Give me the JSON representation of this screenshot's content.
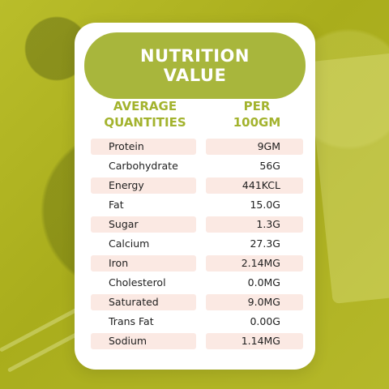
{
  "title": [
    "NUTRITION",
    "VALUE"
  ],
  "columns": {
    "left": [
      "AVERAGE",
      "QUANTITIES"
    ],
    "right": [
      "PER",
      "100GM"
    ]
  },
  "rows": [
    {
      "name": "Protein",
      "value": "9GM"
    },
    {
      "name": "Carbohydrate",
      "value": "56G"
    },
    {
      "name": "Energy",
      "value": "441KCL"
    },
    {
      "name": "Fat",
      "value": "15.0G"
    },
    {
      "name": "Sugar",
      "value": "1.3G"
    },
    {
      "name": "Calcium",
      "value": "27.3G"
    },
    {
      "name": "Iron",
      "value": "2.14MG"
    },
    {
      "name": "Cholesterol",
      "value": "0.0MG"
    },
    {
      "name": "Saturated",
      "value": "9.0MG"
    },
    {
      "name": "Trans Fat",
      "value": "0.00G"
    },
    {
      "name": "Sodium",
      "value": "1.14MG"
    }
  ],
  "colors": {
    "background": "#b5b82a",
    "title_pill": "#a8b63c",
    "header_text": "#a3b32e",
    "row_shade": "#fbe9e3"
  }
}
